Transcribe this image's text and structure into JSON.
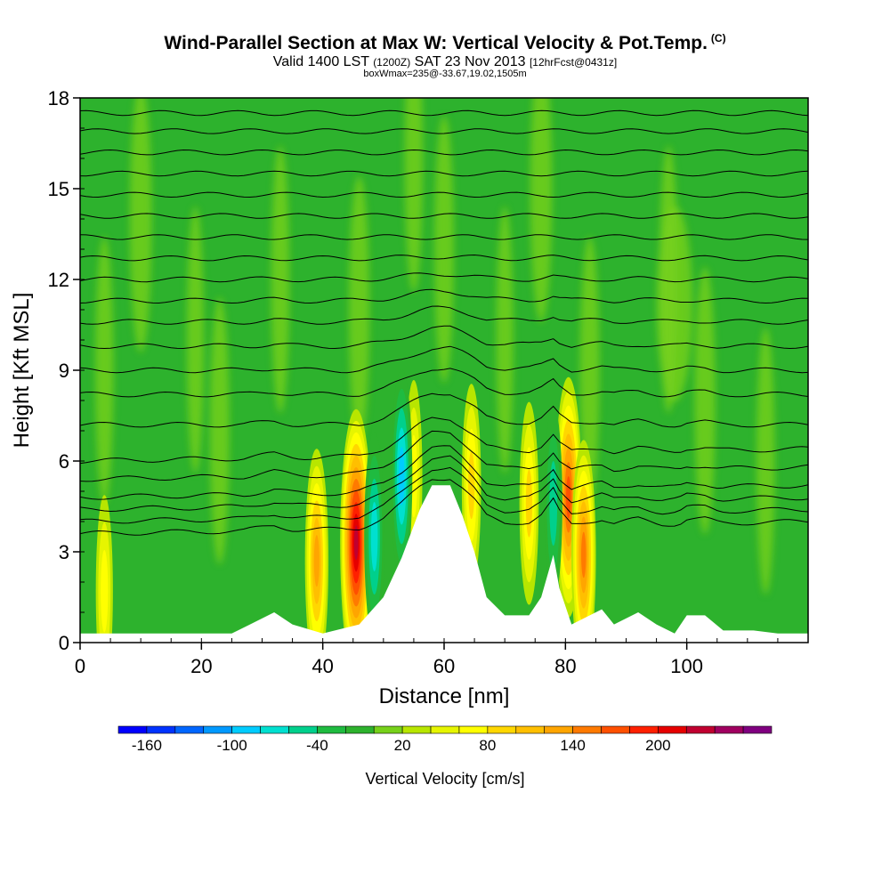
{
  "chart_data": {
    "type": "heatmap",
    "title": "Wind-Parallel Section at Max W: Vertical Velocity & Pot.Temp.",
    "title_mark": "(C)",
    "subtitle_a": "Valid 1400 LST",
    "subtitle_b": "(1200Z)",
    "subtitle_c": "SAT 23 Nov 2013",
    "subtitle_d": "[12hrFcst@0431z]",
    "subtitle2": "boxWmax=235@-33.67,19.02,1505m",
    "xlabel": "Distance [nm]",
    "ylabel": "Height [Kft MSL]",
    "xlim": [
      0,
      120
    ],
    "ylim": [
      0,
      18
    ],
    "xticks": [
      "0",
      "20",
      "40",
      "60",
      "80",
      "100"
    ],
    "yticks": [
      "0",
      "3",
      "6",
      "9",
      "12",
      "15",
      "18"
    ],
    "colorbar": {
      "title": "Vertical Velocity [cm/s]",
      "labels": [
        "-160",
        "-100",
        "-40",
        "20",
        "80",
        "140",
        "200"
      ],
      "colors": [
        "#0000ff",
        "#0033ff",
        "#0066ff",
        "#0099ff",
        "#00ccff",
        "#00e0d0",
        "#00d08c",
        "#1fbb40",
        "#2db22d",
        "#77d11a",
        "#b8e600",
        "#e6f500",
        "#ffff00",
        "#ffd700",
        "#ffbf00",
        "#ffa500",
        "#ff7a00",
        "#ff5000",
        "#ff2000",
        "#e60000",
        "#c00030",
        "#a00060",
        "#800080"
      ]
    },
    "updraft_cores": [
      {
        "x": 4,
        "z": 1.7,
        "w": 60
      },
      {
        "x": 39,
        "z": 2.7,
        "w": 120
      },
      {
        "x": 45.5,
        "z": 3.3,
        "w": 210
      },
      {
        "x": 55,
        "z": 5.5,
        "w": 60
      },
      {
        "x": 64.5,
        "z": 5.2,
        "w": 80
      },
      {
        "x": 74,
        "z": 4.6,
        "w": 80
      },
      {
        "x": 80.5,
        "z": 4.8,
        "w": 150
      },
      {
        "x": 83,
        "z": 2.9,
        "w": 130
      }
    ],
    "downdraft_cores": [
      {
        "x": 48.5,
        "z": 3.5,
        "w": -90
      },
      {
        "x": 53,
        "z": 5.5,
        "w": -100
      },
      {
        "x": 78,
        "z": 4.6,
        "w": -70
      }
    ],
    "terrain_profile": [
      [
        0,
        0.3
      ],
      [
        25,
        0.3
      ],
      [
        28,
        0.6
      ],
      [
        32,
        1.0
      ],
      [
        35,
        0.6
      ],
      [
        40,
        0.3
      ],
      [
        46,
        0.6
      ],
      [
        50,
        1.5
      ],
      [
        53,
        2.8
      ],
      [
        56,
        4.4
      ],
      [
        58,
        5.2
      ],
      [
        61,
        5.2
      ],
      [
        63,
        4.2
      ],
      [
        65,
        3.0
      ],
      [
        67,
        1.5
      ],
      [
        70,
        0.9
      ],
      [
        74,
        0.9
      ],
      [
        76,
        1.5
      ],
      [
        78,
        2.9
      ],
      [
        79,
        1.8
      ],
      [
        81,
        0.6
      ],
      [
        86,
        1.1
      ],
      [
        88,
        0.6
      ],
      [
        92,
        1.0
      ],
      [
        95,
        0.6
      ],
      [
        98,
        0.3
      ],
      [
        100,
        0.9
      ],
      [
        103,
        0.9
      ],
      [
        106,
        0.4
      ],
      [
        111,
        0.4
      ],
      [
        115,
        0.3
      ],
      [
        120,
        0.3
      ]
    ],
    "isentrope_levels": [
      4.0,
      4.4,
      4.8,
      5.2,
      5.8,
      6.4,
      7.2,
      8.2,
      9.0,
      9.8,
      10.6,
      11.3,
      12.0,
      12.7,
      13.4,
      14.1,
      14.8,
      15.5,
      16.2,
      16.9,
      17.5
    ]
  }
}
